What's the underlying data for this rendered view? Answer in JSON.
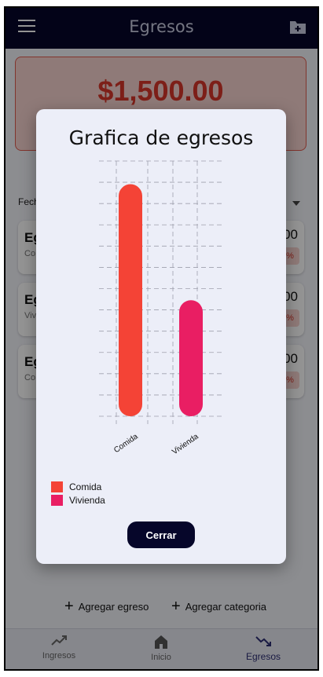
{
  "appbar": {
    "title": "Egresos",
    "menu_icon": "menu-icon",
    "action_icon": "create-folder-icon"
  },
  "total": {
    "amount": "$1,500.00"
  },
  "filter": {
    "label": "Fech"
  },
  "list": [
    {
      "title": "Eg",
      "subtitle": "Co",
      "amount": "00",
      "percent": "%"
    },
    {
      "title": "Eg",
      "subtitle": "Viv",
      "amount": "00",
      "percent": "%"
    },
    {
      "title": "Eg",
      "subtitle": "Co",
      "amount": "00",
      "percent": "%"
    }
  ],
  "actions": {
    "add_expense": "Agregar egreso",
    "add_category": "Agregar categoria"
  },
  "nav": {
    "items": [
      {
        "label": "Ingresos",
        "icon": "trending-up-icon"
      },
      {
        "label": "Inicio",
        "icon": "home-icon"
      },
      {
        "label": "Egresos",
        "icon": "trending-down-icon"
      }
    ],
    "active": "Egresos"
  },
  "dialog": {
    "title": "Grafica de egresos",
    "close_label": "Cerrar"
  },
  "chart_data": {
    "type": "bar",
    "categories": [
      "Comida",
      "Vivienda"
    ],
    "values": [
      1000,
      500
    ],
    "colors": [
      "#f44336",
      "#e91e63"
    ],
    "ylim": [
      0,
      1100
    ],
    "grid": true,
    "legend": "bottom-left",
    "legend_entries": [
      "Comida",
      "Vivienda"
    ]
  },
  "colors": {
    "appbar": "#06062a",
    "accent_red": "#d8362a",
    "active_nav": "#2e2f74"
  }
}
